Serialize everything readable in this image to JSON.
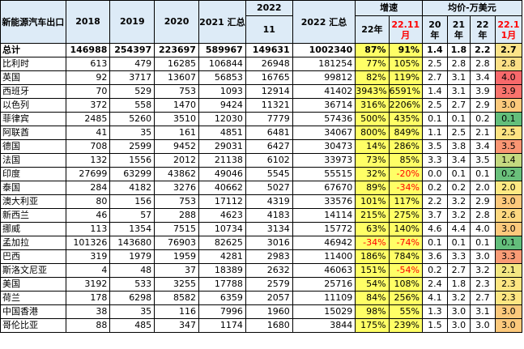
{
  "header": {
    "col0": "新能源汽车出口",
    "y2018": "2018",
    "y2019": "2019",
    "y2020": "2020",
    "y2021": "2021 汇总",
    "y2022": "2022",
    "m11": "11",
    "y2022sum": "2022 汇总",
    "growth": "增速",
    "g22": "22年",
    "g2211": "22.11 月",
    "price": "均价-万美元",
    "p20": "20 年",
    "p21": "21 年",
    "p22": "22 年",
    "p221": "22.1 1月"
  },
  "rows": [
    {
      "name": "总计",
      "y2018": "146988",
      "y2019": "254397",
      "y2020": "223697",
      "y2021": "589967",
      "m11": "149631",
      "y2022": "1002340",
      "g22": "87%",
      "g2211": "91%",
      "p20": "1.4",
      "p21": "1.8",
      "p22": "2.2",
      "p2211": "2.7",
      "color": "#fbe389"
    },
    {
      "name": "比利时",
      "y2018": "613",
      "y2019": "479",
      "y2020": "16285",
      "y2021": "106844",
      "m11": "26948",
      "y2022": "181254",
      "g22": "77%",
      "g2211": "105%",
      "p20": "2.5",
      "p21": "2.8",
      "p22": "2.8",
      "p2211": "2.8",
      "color": "#fbdf86"
    },
    {
      "name": "英国",
      "y2018": "92",
      "y2019": "3717",
      "y2020": "13607",
      "y2021": "56853",
      "m11": "16765",
      "y2022": "99812",
      "g22": "82%",
      "g2211": "119%",
      "p20": "2.7",
      "p21": "3.1",
      "p22": "3.4",
      "p2211": "4.0",
      "color": "#f8696b"
    },
    {
      "name": "西班牙",
      "y2018": "70",
      "y2019": "529",
      "y2020": "753",
      "y2021": "1093",
      "m11": "12914",
      "y2022": "41402",
      "g22": "3943%",
      "g2211": "6591%",
      "p20": "1.4",
      "p21": "3.1",
      "p22": "3.9",
      "p2211": "3.9",
      "color": "#f8736c"
    },
    {
      "name": "以色列",
      "y2018": "372",
      "y2019": "558",
      "y2020": "1470",
      "y2021": "9424",
      "m11": "11321",
      "y2022": "36714",
      "g22": "316%",
      "g2211": "2206%",
      "p20": "2.5",
      "p21": "2.7",
      "p22": "2.9",
      "p2211": "3.0",
      "color": "#fcc97c"
    },
    {
      "name": "菲律宾",
      "y2018": "2485",
      "y2019": "5260",
      "y2020": "3510",
      "y2021": "12030",
      "m11": "7779",
      "y2022": "57436",
      "g22": "500%",
      "g2211": "435%",
      "p20": "0.1",
      "p21": "0.1",
      "p22": "0.2",
      "p2211": "0.1",
      "color": "#63be7b"
    },
    {
      "name": "阿联酋",
      "y2018": "41",
      "y2019": "35",
      "y2020": "161",
      "y2021": "4851",
      "m11": "6481",
      "y2022": "34067",
      "g22": "800%",
      "g2211": "849%",
      "p20": "1.1",
      "p21": "2.5",
      "p22": "2.1",
      "p2211": "2.5",
      "color": "#fde382"
    },
    {
      "name": "德国",
      "y2018": "708",
      "y2019": "2599",
      "y2020": "9452",
      "y2021": "29031",
      "m11": "6427",
      "y2022": "30473",
      "g22": "14%",
      "g2211": "286%",
      "p20": "3.5",
      "p21": "3.8",
      "p22": "3.4",
      "p2211": "3.5",
      "color": "#fa9673"
    },
    {
      "name": "法国",
      "y2018": "132",
      "y2019": "1556",
      "y2020": "2012",
      "y2021": "21138",
      "m11": "6102",
      "y2022": "33973",
      "g22": "73%",
      "g2211": "85%",
      "p20": "3.3",
      "p21": "3.4",
      "p22": "3.5",
      "p2211": "1.4",
      "color": "#c4d980"
    },
    {
      "name": "印度",
      "y2018": "27699",
      "y2019": "63299",
      "y2020": "43862",
      "y2021": "49046",
      "m11": "5545",
      "y2022": "55515",
      "g22": "32%",
      "g2211": "-20%",
      "p20": "0.0",
      "p21": "0.1",
      "p22": "0.1",
      "p2211": "0.2",
      "color": "#6ac07b"
    },
    {
      "name": "泰国",
      "y2018": "284",
      "y2019": "4182",
      "y2020": "3276",
      "y2021": "40662",
      "m11": "5027",
      "y2022": "67670",
      "g22": "89%",
      "g2211": "-34%",
      "p20": "0.2",
      "p21": "0.2",
      "p22": "2.0",
      "p2211": "2.0",
      "color": "#fee983"
    },
    {
      "name": "澳大利亚",
      "y2018": "80",
      "y2019": "156",
      "y2020": "753",
      "y2021": "17112",
      "m11": "4319",
      "y2022": "33576",
      "g22": "101%",
      "g2211": "117%",
      "p20": "2.2",
      "p21": "3.2",
      "p22": "2.9",
      "p2211": "3.0",
      "color": "#fcc97c"
    },
    {
      "name": "新西兰",
      "y2018": "46",
      "y2019": "57",
      "y2020": "288",
      "y2021": "4623",
      "m11": "4183",
      "y2022": "14114",
      "g22": "215%",
      "g2211": "275%",
      "p20": "3.7",
      "p21": "3.2",
      "p22": "2.8",
      "p2211": "2.6",
      "color": "#fdd880"
    },
    {
      "name": "挪威",
      "y2018": "113",
      "y2019": "1354",
      "y2020": "7515",
      "y2021": "10734",
      "m11": "3134",
      "y2022": "15772",
      "g22": "63%",
      "g2211": "140%",
      "p20": "4.6",
      "p21": "4.4",
      "p22": "4.0",
      "p2211": "3.0",
      "color": "#fcc97c"
    },
    {
      "name": "孟加拉",
      "y2018": "101326",
      "y2019": "143680",
      "y2020": "76903",
      "y2021": "82625",
      "m11": "3016",
      "y2022": "46942",
      "g22": "-34%",
      "g2211": "-74%",
      "p20": "0.1",
      "p21": "0.1",
      "p22": "0.1",
      "p2211": "0.1",
      "color": "#63be7b"
    },
    {
      "name": "巴西",
      "y2018": "319",
      "y2019": "1979",
      "y2020": "1959",
      "y2021": "4281",
      "m11": "2983",
      "y2022": "11400",
      "g22": "186%",
      "g2211": "784%",
      "p20": "3.6",
      "p21": "3.3",
      "p22": "3.0",
      "p2211": "3.3",
      "color": "#f99c76"
    },
    {
      "name": "斯洛文尼亚",
      "y2018": "4",
      "y2019": "48",
      "y2020": "37",
      "y2021": "18389",
      "m11": "2632",
      "y2022": "46063",
      "g22": "151%",
      "g2211": "-54%",
      "p20": "0.2",
      "p21": "2.7",
      "p22": "3.2",
      "p2211": "2.1",
      "color": "#f3e782"
    },
    {
      "name": "美国",
      "y2018": "3192",
      "y2019": "533",
      "y2020": "3255",
      "y2021": "17788",
      "m11": "2579",
      "y2022": "25716",
      "g22": "54%",
      "g2211": "108%",
      "p20": "2.4",
      "p21": "1.8",
      "p22": "2.3",
      "p2211": "2.3",
      "color": "#fde682"
    },
    {
      "name": "荷兰",
      "y2018": "178",
      "y2019": "6298",
      "y2020": "8582",
      "y2021": "6359",
      "m11": "2057",
      "y2022": "11109",
      "g22": "84%",
      "g2211": "256%",
      "p20": "4.1",
      "p21": "3.2",
      "p22": "2.7",
      "p2211": "2.3",
      "color": "#fde682"
    },
    {
      "name": "中国香港",
      "y2018": "38",
      "y2019": "35",
      "y2020": "116",
      "y2021": "7996",
      "m11": "1960",
      "y2022": "15029",
      "g22": "98%",
      "g2211": "55%",
      "p20": "1.3",
      "p21": "3.0",
      "p22": "3.1",
      "p2211": "3.0",
      "color": "#fcc97c"
    },
    {
      "name": "哥伦比亚",
      "y2018": "88",
      "y2019": "485",
      "y2020": "347",
      "y2021": "1174",
      "m11": "1680",
      "y2022": "3844",
      "g22": "175%",
      "g2211": "239%",
      "p20": "1.5",
      "p21": "3.0",
      "p22": "3.0",
      "p2211": "3.0",
      "color": "#fcc97c"
    }
  ]
}
